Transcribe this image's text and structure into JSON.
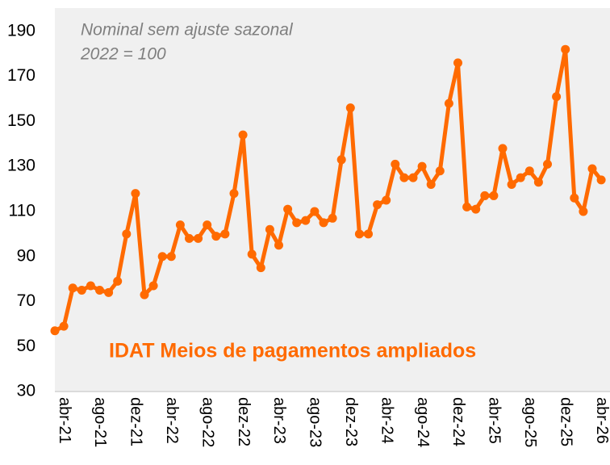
{
  "chart_data": {
    "type": "line",
    "annotations": [
      "Nominal sem ajuste sazonal",
      "2022 = 100",
      "IDAT Meios de pagamentos ampliados"
    ],
    "categories": [
      null,
      "abr-21",
      null,
      null,
      null,
      "ago-21",
      null,
      null,
      null,
      "dez-21",
      null,
      null,
      null,
      "abr-22",
      null,
      null,
      null,
      "ago-22",
      null,
      null,
      null,
      "dez-22",
      null,
      null,
      null,
      "abr-23",
      null,
      null,
      null,
      "ago-23",
      null,
      null,
      null,
      "dez-23",
      null,
      null,
      null,
      "abr-24",
      null,
      null,
      null,
      "ago-24",
      null,
      null,
      null,
      "dez-24",
      null,
      null,
      null,
      "abr-25",
      null,
      null,
      null,
      "ago-25",
      null,
      null,
      null,
      "dez-25",
      null,
      null,
      null,
      "abr-26"
    ],
    "series": [
      {
        "name": "IDAT Meios de pagamentos ampliados",
        "color": "#ff6a00",
        "values": [
          57,
          59,
          76,
          75,
          77,
          75,
          74,
          79,
          100,
          118,
          73,
          77,
          90,
          90,
          104,
          98,
          98,
          104,
          99,
          100,
          118,
          144,
          91,
          85,
          102,
          95,
          111,
          105,
          106,
          110,
          105,
          107,
          133,
          156,
          100,
          100,
          113,
          115,
          131,
          125,
          125,
          130,
          122,
          128,
          158,
          176,
          112,
          111,
          117,
          117,
          138,
          122,
          125,
          128,
          123,
          131,
          161,
          182,
          116,
          110,
          129,
          124
        ]
      }
    ],
    "ylim": [
      30,
      200
    ],
    "yticks": [
      30,
      50,
      70,
      90,
      110,
      130,
      150,
      170,
      190
    ],
    "grid": false
  }
}
